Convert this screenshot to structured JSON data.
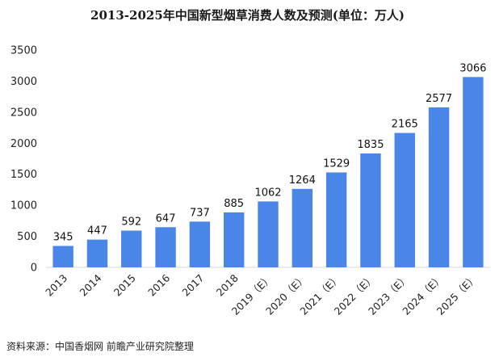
{
  "chart_data": {
    "type": "bar",
    "title": "2013-2025年中国新型烟草消费人数及预测(单位：万人)",
    "xlabel": "",
    "ylabel": "",
    "categories": [
      "2013",
      "2014",
      "2015",
      "2016",
      "2017",
      "2018",
      "2019（E）",
      "2020（E）",
      "2021（E）",
      "2022（E）",
      "2023（E）",
      "2024（E）",
      "2025（E）"
    ],
    "values": [
      345,
      447,
      592,
      647,
      737,
      885,
      1062,
      1264,
      1529,
      1835,
      2165,
      2577,
      3066
    ],
    "ylim": [
      0,
      3500
    ],
    "yticks": [
      0,
      500,
      1000,
      1500,
      2000,
      2500,
      3000,
      3500
    ],
    "grid": false,
    "legend": "none",
    "bar_color": "#4a86e8"
  },
  "source": "资料来源：中国香烟网 前瞻产业研究院整理"
}
